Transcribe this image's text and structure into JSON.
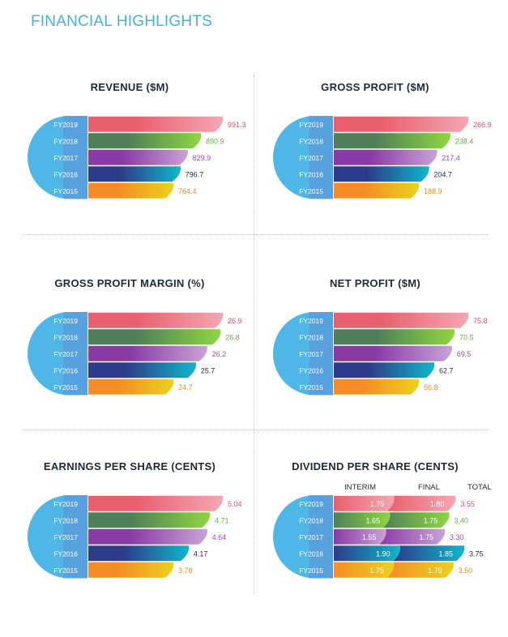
{
  "page_title": "FINANCIAL HIGHLIGHTS",
  "colors": {
    "blue": "#4fb7e8",
    "fy2019": [
      "#ea5f6e",
      "#f4a7b2"
    ],
    "fy2018": [
      "#4f7f58",
      "#8fd640"
    ],
    "fy2017": [
      "#8a3aa6",
      "#c8a4d6"
    ],
    "fy2016": [
      "#2d3c8a",
      "#0fb7cc"
    ],
    "fy2015": [
      "#f48d25",
      "#ecd21c"
    ],
    "value_colors": [
      "#e05060",
      "#6cb043",
      "#9b4db8",
      "#1e2a5a",
      "#e0901a"
    ]
  },
  "chart_data": [
    {
      "type": "bar",
      "title": "REVENUE ($M)",
      "categories": [
        "FY2019",
        "FY2018",
        "FY2017",
        "FY2016",
        "FY2015"
      ],
      "values": [
        991.3,
        890.9,
        829.9,
        796.7,
        764.4
      ],
      "value_labels": [
        "991.3",
        "890.9",
        "829.9",
        "796.7",
        "764.4"
      ]
    },
    {
      "type": "bar",
      "title": "GROSS  PROFIT ($M)",
      "categories": [
        "FY2019",
        "FY2018",
        "FY2017",
        "FY2016",
        "FY2015"
      ],
      "values": [
        266.9,
        238.4,
        217.4,
        204.7,
        188.9
      ],
      "value_labels": [
        "266.9",
        "238.4",
        "217.4",
        "204.7",
        "188.9"
      ]
    },
    {
      "type": "bar",
      "title": "GROSS PROFIT MARGIN (%)",
      "categories": [
        "FY2019",
        "FY2018",
        "FY2017",
        "FY2016",
        "FY2015"
      ],
      "values": [
        26.9,
        26.8,
        26.2,
        25.7,
        24.7
      ],
      "value_labels": [
        "26.9",
        "26.8",
        "26.2",
        "25.7",
        "24.7"
      ]
    },
    {
      "type": "bar",
      "title": "NET PROFIT ($M)",
      "categories": [
        "FY2019",
        "FY2018",
        "FY2017",
        "FY2016",
        "FY2015"
      ],
      "values": [
        75.8,
        70.5,
        69.5,
        62.7,
        56.8
      ],
      "value_labels": [
        "75.8",
        "70.5",
        "69.5",
        "62.7",
        "56.8"
      ]
    },
    {
      "type": "bar",
      "title": "EARNINGS PER SHARE (CENTS)",
      "categories": [
        "FY2019",
        "FY2018",
        "FY2017",
        "FY2016",
        "FY2015"
      ],
      "values": [
        5.04,
        4.71,
        4.64,
        4.17,
        3.78
      ],
      "value_labels": [
        "5.04",
        "4.71",
        "4.64",
        "4.17",
        "3.78"
      ]
    },
    {
      "type": "bar",
      "title": "DIVIDEND PER SHARE (CENTS)",
      "categories": [
        "FY2019",
        "FY2018",
        "FY2017",
        "FY2016",
        "FY2015"
      ],
      "stacked": true,
      "column_headers": [
        "INTERIM",
        "FINAL",
        "TOTAL"
      ],
      "series": [
        {
          "name": "INTERIM",
          "values": [
            1.75,
            1.65,
            1.55,
            1.9,
            1.75
          ],
          "value_labels": [
            "1.75",
            "1.65",
            "1.55",
            "1.90",
            "1.75"
          ]
        },
        {
          "name": "FINAL",
          "values": [
            1.8,
            1.75,
            1.75,
            1.85,
            1.75
          ],
          "value_labels": [
            "1.80",
            "1.75",
            "1.75",
            "1.85",
            "1.75"
          ]
        }
      ],
      "totals": [
        3.55,
        3.4,
        3.3,
        3.75,
        3.5
      ],
      "total_labels": [
        "3.55",
        "3.40",
        "3.30",
        "3.75",
        "3.50"
      ]
    }
  ]
}
